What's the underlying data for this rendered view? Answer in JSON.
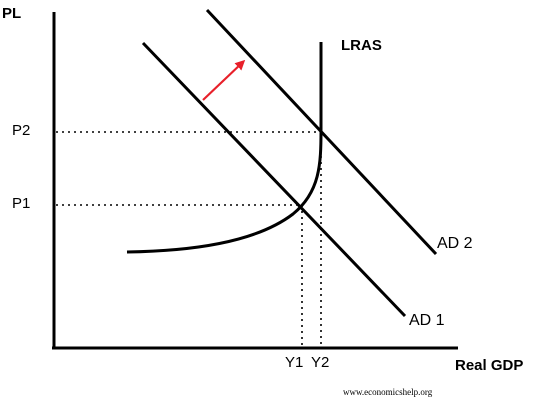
{
  "diagram": {
    "y_axis_label": "PL",
    "x_axis_label": "Real GDP",
    "price_levels": [
      "P2",
      "P1"
    ],
    "output_levels": [
      "Y1",
      "Y2"
    ],
    "curves": {
      "lras": "LRAS",
      "ad1": "AD 1",
      "ad2": "AD 2"
    },
    "watermark": "www.economicshelp.org",
    "colors": {
      "curve": "#000000",
      "shift_arrow": "#e8202a"
    }
  }
}
